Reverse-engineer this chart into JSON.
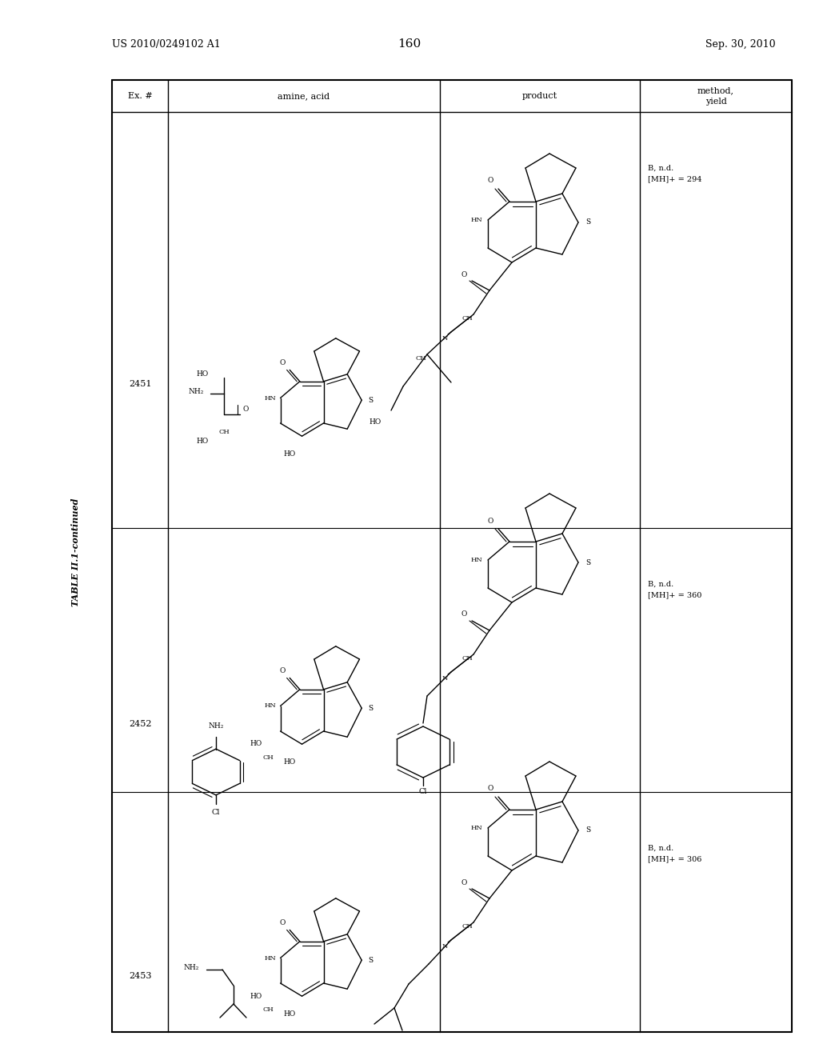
{
  "page_number": "160",
  "patent_number": "US 2010/0249102 A1",
  "patent_date": "Sep. 30, 2010",
  "table_title": "TABLE II.1-continued",
  "col_headers": [
    "Ex. #",
    "amine, acid",
    "product",
    "method,\nyield"
  ],
  "ex_numbers": [
    "2451",
    "2452",
    "2453"
  ],
  "methods": [
    [
      "B, n.d.",
      "[MH]+ = 294"
    ],
    [
      "B, n.d.",
      "[MH]+ = 360"
    ],
    [
      "B, n.d.",
      "[MH]+ = 306"
    ]
  ]
}
